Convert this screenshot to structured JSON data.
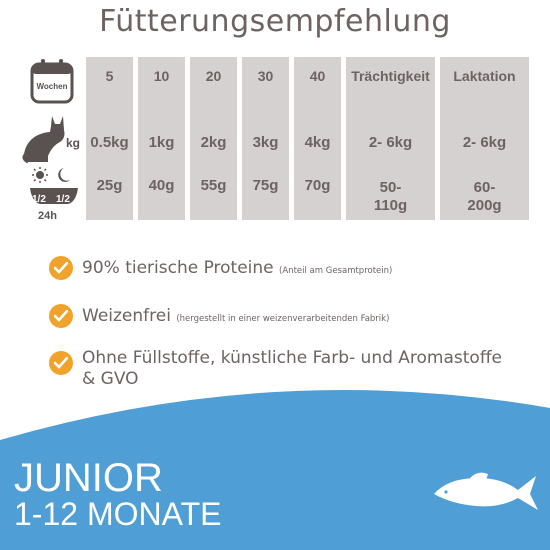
{
  "title": "Fütterungsempfehlung",
  "row_labels": {
    "calendar_text": "Wochen",
    "weight_unit": "kg",
    "day_text": "24h",
    "half_left": "1/2",
    "half_right": "1/2"
  },
  "columns": [
    {
      "head": "5",
      "kg": "0.5kg",
      "g": "25g"
    },
    {
      "head": "10",
      "kg": "1kg",
      "g": "40g"
    },
    {
      "head": "20",
      "kg": "2kg",
      "g": "55g"
    },
    {
      "head": "30",
      "kg": "3kg",
      "g": "75g"
    },
    {
      "head": "40",
      "kg": "4kg",
      "g": "70g"
    },
    {
      "head": "Trächtigkeit",
      "kg": "2- 6kg",
      "g1": "50-",
      "g2": "110g"
    },
    {
      "head": "Laktation",
      "kg": "2- 6kg",
      "g1": "60-",
      "g2": "200g"
    }
  ],
  "features": [
    {
      "text": "90% tierische Proteine",
      "note": "(Anteil am Gesamtprotein)"
    },
    {
      "text": "Weizenfrei",
      "note": "(hergestellt in einer weizenverarbeitenden Fabrik)"
    },
    {
      "line1": "Ohne Füllstoffe, künstliche Farb- und Aromastoffe",
      "line2": "& GVO"
    }
  ],
  "band": {
    "title": "JUNIOR",
    "subtitle": "1-12 MONATE",
    "color": "#4f9ed6"
  },
  "colors": {
    "text": "#6e6363",
    "column_bg": "#d5d1d0",
    "check": "#f0a32b"
  },
  "icons": [
    "calendar-icon",
    "cat-icon",
    "sun-moon-bowl-icon",
    "check-icon",
    "fish-icon"
  ]
}
